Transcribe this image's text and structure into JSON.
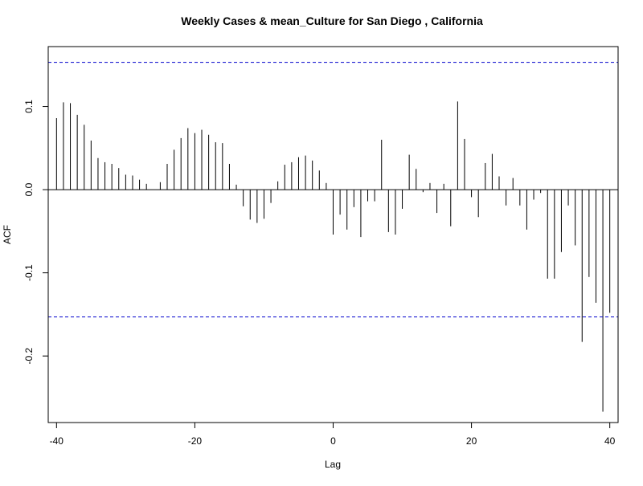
{
  "chart_data": {
    "type": "bar",
    "title": "Weekly Cases & mean_Culture for San Diego , California",
    "xlabel": "Lag",
    "ylabel": "ACF",
    "xlim": [
      -41.2,
      41.2
    ],
    "ylim": [
      -0.28,
      0.172
    ],
    "xticks": [
      -40,
      -20,
      0,
      20,
      40
    ],
    "xtick_labels": [
      "-40",
      "-20",
      "0",
      "20",
      "40"
    ],
    "yticks": [
      -0.2,
      -0.1,
      0.0,
      0.1
    ],
    "ytick_labels": [
      "-0.2",
      "-0.1",
      "0.0",
      "0.1"
    ],
    "confidence_bound": 0.153,
    "lags": [
      -40,
      -39,
      -38,
      -37,
      -36,
      -35,
      -34,
      -33,
      -32,
      -31,
      -30,
      -29,
      -28,
      -27,
      -26,
      -25,
      -24,
      -23,
      -22,
      -21,
      -20,
      -19,
      -18,
      -17,
      -16,
      -15,
      -14,
      -13,
      -12,
      -11,
      -10,
      -9,
      -8,
      -7,
      -6,
      -5,
      -4,
      -3,
      -2,
      -1,
      0,
      1,
      2,
      3,
      4,
      5,
      6,
      7,
      8,
      9,
      10,
      11,
      12,
      13,
      14,
      15,
      16,
      17,
      18,
      19,
      20,
      21,
      22,
      23,
      24,
      25,
      26,
      27,
      28,
      29,
      30,
      31,
      32,
      33,
      34,
      35,
      36,
      37,
      38,
      39,
      40
    ],
    "values": [
      0.086,
      0.105,
      0.104,
      0.09,
      0.078,
      0.059,
      0.038,
      0.033,
      0.031,
      0.026,
      0.018,
      0.017,
      0.012,
      0.007,
      0.0,
      0.009,
      0.031,
      0.048,
      0.062,
      0.074,
      0.068,
      0.072,
      0.066,
      0.057,
      0.056,
      0.031,
      0.006,
      -0.02,
      -0.036,
      -0.04,
      -0.035,
      -0.016,
      0.01,
      0.03,
      0.033,
      0.039,
      0.041,
      0.035,
      0.023,
      0.008,
      -0.054,
      -0.03,
      -0.048,
      -0.021,
      -0.057,
      -0.014,
      -0.014,
      0.06,
      -0.051,
      -0.054,
      -0.023,
      0.042,
      0.025,
      -0.003,
      0.008,
      -0.028,
      0.007,
      -0.044,
      0.106,
      0.061,
      -0.009,
      -0.033,
      0.032,
      0.043,
      0.016,
      -0.019,
      0.014,
      -0.019,
      -0.048,
      -0.012,
      -0.004,
      -0.107,
      -0.107,
      -0.075,
      -0.019,
      -0.067,
      -0.183,
      -0.105,
      -0.136,
      -0.267,
      -0.148
    ],
    "colors": {
      "bars": "#000000",
      "confidence": "#0000cc",
      "axis": "#000000"
    }
  }
}
